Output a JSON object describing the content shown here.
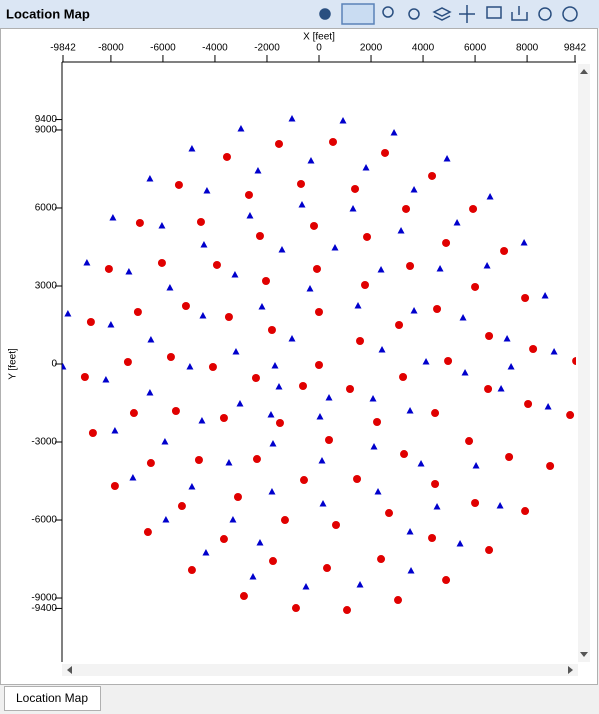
{
  "window_title": "Location Map",
  "tab_label": "Location Map",
  "chart_data": {
    "type": "scatter",
    "xlabel": "X [feet]",
    "ylabel": "Y [feet]",
    "xlim": [
      -9842,
      9842
    ],
    "ylim": [
      -11460,
      11460
    ],
    "xticks": [
      -9842,
      -8000,
      -6000,
      -4000,
      -2000,
      0,
      2000,
      4000,
      6000,
      8000,
      9842
    ],
    "yticks": [
      9400,
      9000,
      6000,
      3000,
      0,
      -3000,
      -6000,
      -9000,
      -9400
    ],
    "series": [
      {
        "color": "#e00000",
        "marker": "circle",
        "x": [
          -1538,
          538,
          -3538,
          2538,
          -5385,
          -692,
          1385,
          4346,
          -2692,
          -4538,
          -192,
          3346,
          5923,
          -6885,
          -2269,
          1846,
          4885,
          7115,
          -8077,
          -6038,
          -3923,
          -77,
          -2038,
          3500,
          1769,
          6000,
          7923,
          -6962,
          -5115,
          -3462,
          0,
          4538,
          -8769,
          -1808,
          1577,
          3077,
          6538,
          -7346,
          -5692,
          -4077,
          0,
          4962,
          8231,
          9885,
          -9000,
          -2423,
          -615,
          1192,
          3231,
          6500,
          -7115,
          -5500,
          -3654,
          -1500,
          2231,
          4462,
          8038,
          9654,
          -8692,
          385,
          3269,
          5769,
          -6462,
          -4615,
          -2385,
          -577,
          1462,
          4462,
          7308,
          -7846,
          8885,
          -3115,
          -5269,
          -1308,
          654,
          2692,
          6000,
          7923,
          -6577,
          -3654,
          -1769,
          308,
          2385,
          4346,
          6538,
          -4885,
          4885,
          -2885,
          -885,
          1077,
          3038
        ],
        "values": [
          8462,
          8538,
          7962,
          8115,
          6885,
          6923,
          6731,
          7231,
          6500,
          5462,
          5308,
          5962,
          5962,
          5423,
          4923,
          4885,
          4654,
          4346,
          3654,
          3885,
          3808,
          3654,
          3192,
          3769,
          3038,
          2962,
          2538,
          2000,
          2231,
          1808,
          2000,
          2115,
          1615,
          1308,
          885,
          1500,
          1077,
          77,
          269,
          -115,
          -38,
          115,
          577,
          115,
          -500,
          -538,
          -846,
          -962,
          -500,
          -962,
          -1885,
          -1808,
          -2077,
          -2269,
          -2231,
          -1885,
          -1538,
          -1962,
          -2654,
          -2923,
          -3462,
          -2962,
          -3808,
          -3692,
          -3654,
          -4462,
          -4423,
          -4615,
          -3577,
          -4692,
          -3923,
          -5115,
          -5462,
          -6000,
          -6192,
          -5731,
          -5346,
          -5654,
          -6462,
          -6731,
          -7577,
          -7846,
          -7500,
          -6692,
          -7154,
          -7923,
          -8308,
          -8923,
          -9385,
          -9462,
          -9077
        ]
      },
      {
        "color": "#0000cc",
        "marker": "triangle",
        "x": [
          -1038,
          923,
          -3000,
          2885,
          -4885,
          -308,
          4923,
          -6500,
          1808,
          -2346,
          3654,
          -4308,
          -654,
          1308,
          6577,
          -7923,
          -2654,
          -6038,
          3154,
          5308,
          -4423,
          -1423,
          615,
          7885,
          -8923,
          -7308,
          -3231,
          2385,
          4654,
          6462,
          -346,
          -5731,
          3654,
          -2192,
          1500,
          5538,
          8692,
          -9654,
          -8000,
          -4462,
          -1038,
          -6462,
          -3192,
          2423,
          7231,
          9038,
          -9846,
          -8192,
          -4962,
          -1692,
          4115,
          5615,
          7385,
          -6500,
          -3038,
          -1538,
          385,
          7000,
          8808,
          -7846,
          -4500,
          -1846,
          38,
          2077,
          3500,
          -5923,
          -3462,
          -1769,
          2115,
          3923,
          6038,
          -7154,
          -4885,
          115,
          -1808,
          2269,
          6962,
          -5885,
          -3308,
          154,
          4538,
          -4346,
          -2269,
          3500,
          5423,
          -2538,
          -500,
          1577,
          3538
        ],
        "values": [
          9423,
          9346,
          9038,
          8885,
          8269,
          7808,
          7885,
          7115,
          7538,
          7423,
          6692,
          6654,
          6115,
          5962,
          6423,
          5615,
          5692,
          5308,
          5115,
          5423,
          4577,
          4385,
          4462,
          4654,
          3885,
          3538,
          3423,
          3615,
          3654,
          3769,
          2885,
          2923,
          2038,
          2192,
          2231,
          1769,
          2615,
          1923,
          1500,
          1846,
          962,
          923,
          462,
          538,
          962,
          462,
          -115,
          -615,
          -115,
          -77,
          77,
          -346,
          -115,
          -1115,
          -1538,
          -885,
          -1308,
          -962,
          -1654,
          -2577,
          -2192,
          -1962,
          -2038,
          -1346,
          -1808,
          -3000,
          -3808,
          -3077,
          -3192,
          -3846,
          -3923,
          -4385,
          -4731,
          -3731,
          -4923,
          -4923,
          -5462,
          -6000,
          -6000,
          -5385,
          -5500,
          -7269,
          -6885,
          -6462,
          -6923,
          -8192,
          -8577,
          -8500,
          -7962
        ]
      }
    ]
  }
}
